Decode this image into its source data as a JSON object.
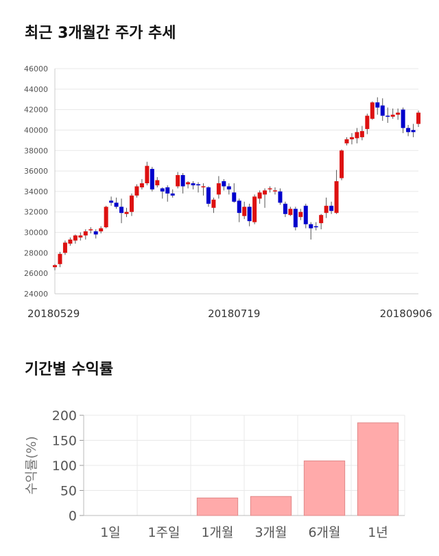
{
  "sections": {
    "price_title": "최근 3개월간 주가 추세",
    "return_title": "기간별 수익률"
  },
  "chart_data": [
    {
      "type": "candlestick",
      "title": "최근 3개월간 주가 추세",
      "ylim": [
        24000,
        46000
      ],
      "yticks": [
        "24000",
        "26000",
        "28000",
        "30000",
        "32000",
        "34000",
        "36000",
        "38000",
        "40000",
        "42000",
        "44000",
        "46000"
      ],
      "xticks": [
        {
          "label": "20180529",
          "index": 0
        },
        {
          "label": "20180719",
          "index": 35
        },
        {
          "label": "20180906",
          "index": 69
        }
      ],
      "colors": {
        "up": "#dd1111",
        "down": "#0000cc",
        "wick": "#555555",
        "grid": "#e8e8e8"
      },
      "candles": [
        [
          26600,
          26800,
          26300,
          26900
        ],
        [
          26900,
          27900,
          26600,
          28100
        ],
        [
          28000,
          29000,
          27800,
          29200
        ],
        [
          28900,
          29300,
          28700,
          29500
        ],
        [
          29200,
          29700,
          28900,
          29800
        ],
        [
          29500,
          29700,
          29200,
          30000
        ],
        [
          29700,
          30100,
          29300,
          30300
        ],
        [
          30200,
          30300,
          29900,
          30500
        ],
        [
          30100,
          29800,
          29400,
          30300
        ],
        [
          30100,
          30400,
          29900,
          30600
        ],
        [
          30500,
          32500,
          30400,
          32600
        ],
        [
          33100,
          32900,
          32600,
          33500
        ],
        [
          32900,
          32500,
          32300,
          33400
        ],
        [
          32500,
          31900,
          30900,
          33300
        ],
        [
          31800,
          32000,
          31500,
          32400
        ],
        [
          32000,
          33600,
          31600,
          33800
        ],
        [
          33600,
          34500,
          33400,
          34700
        ],
        [
          34400,
          34800,
          34200,
          35200
        ],
        [
          34800,
          36500,
          34600,
          36900
        ],
        [
          36200,
          34200,
          34000,
          36400
        ],
        [
          34600,
          35100,
          34400,
          35400
        ],
        [
          34300,
          34000,
          33300,
          34400
        ],
        [
          34400,
          33800,
          33000,
          34600
        ],
        [
          33800,
          33600,
          33400,
          34200
        ],
        [
          34500,
          35600,
          34300,
          35900
        ],
        [
          35600,
          34500,
          33800,
          35800
        ],
        [
          34700,
          34900,
          34300,
          35000
        ],
        [
          34800,
          34600,
          34200,
          35000
        ],
        [
          34700,
          34600,
          33900,
          34900
        ],
        [
          34400,
          34500,
          33600,
          34800
        ],
        [
          34400,
          32800,
          32500,
          34500
        ],
        [
          32400,
          33200,
          31900,
          33400
        ],
        [
          33700,
          34800,
          33300,
          35500
        ],
        [
          35000,
          34500,
          34100,
          35200
        ],
        [
          34500,
          34200,
          33700,
          34800
        ],
        [
          33900,
          33000,
          32900,
          34800
        ],
        [
          33100,
          31900,
          31000,
          33300
        ],
        [
          31600,
          32500,
          31300,
          33000
        ],
        [
          32500,
          31100,
          30600,
          32800
        ],
        [
          31000,
          33500,
          30800,
          33700
        ],
        [
          33300,
          33900,
          32800,
          34100
        ],
        [
          33700,
          34100,
          32400,
          34300
        ],
        [
          34200,
          34300,
          33900,
          34500
        ],
        [
          34000,
          34100,
          33700,
          34400
        ],
        [
          34000,
          32900,
          32700,
          34300
        ],
        [
          32800,
          31800,
          31500,
          33000
        ],
        [
          31700,
          32300,
          31600,
          32500
        ],
        [
          32300,
          30500,
          30200,
          32500
        ],
        [
          31500,
          32000,
          31200,
          32300
        ],
        [
          32600,
          30800,
          30400,
          32800
        ],
        [
          30800,
          30400,
          29300,
          31000
        ],
        [
          30600,
          30500,
          30200,
          31000
        ],
        [
          30900,
          31700,
          30300,
          31800
        ],
        [
          31900,
          32600,
          31400,
          33400
        ],
        [
          32600,
          32100,
          31800,
          33000
        ],
        [
          31900,
          35000,
          31800,
          36100
        ],
        [
          35300,
          38000,
          35100,
          38100
        ],
        [
          38700,
          39100,
          38500,
          39300
        ],
        [
          39100,
          39300,
          38600,
          39700
        ],
        [
          39200,
          39800,
          38700,
          40200
        ],
        [
          39300,
          39900,
          39000,
          40400
        ],
        [
          40100,
          41400,
          39600,
          41600
        ],
        [
          41100,
          42700,
          41000,
          42800
        ],
        [
          42700,
          42200,
          41500,
          43200
        ],
        [
          42400,
          41400,
          40900,
          43100
        ],
        [
          41400,
          41300,
          40700,
          42200
        ],
        [
          41300,
          41500,
          41100,
          42100
        ],
        [
          41500,
          41700,
          41000,
          42100
        ],
        [
          42000,
          40200,
          39700,
          42200
        ],
        [
          40200,
          39800,
          39400,
          40500
        ],
        [
          40000,
          39800,
          39300,
          40600
        ],
        [
          40600,
          41700,
          40300,
          41900
        ]
      ]
    },
    {
      "type": "bar",
      "title": "기간별 수익률",
      "ylabel": "수익률(%)",
      "ylim": [
        0,
        200
      ],
      "yticks": [
        "0",
        "50",
        "100",
        "150",
        "200"
      ],
      "categories": [
        "1일",
        "1주일",
        "1개월",
        "3개월",
        "6개월",
        "1년"
      ],
      "values": [
        0,
        0,
        35,
        38,
        109,
        185
      ],
      "colors": {
        "bar": "#ffaaaa",
        "bar_edge": "#e08888",
        "grid": "#e8e8e8"
      }
    }
  ]
}
